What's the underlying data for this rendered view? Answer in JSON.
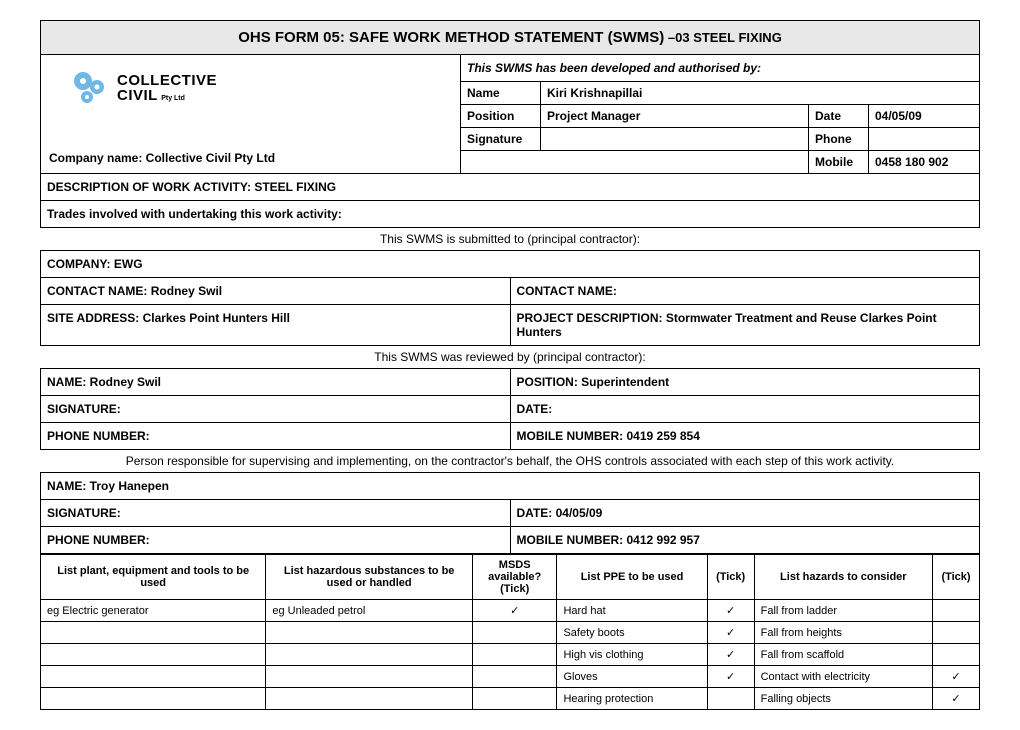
{
  "title_main": "OHS FORM 05: SAFE WORK METHOD STATEMENT (SWMS)",
  "title_suffix": " –03  STEEL FIXING",
  "company_name_label": "Company name: Collective Civil Pty Ltd",
  "logo": {
    "line1": "COLLECTIVE",
    "line2": "CIVIL",
    "sub": "Pty Ltd"
  },
  "auth": {
    "header": "This SWMS has been developed and authorised by:",
    "name_label": "Name",
    "name_value": "Kiri Krishnapillai",
    "position_label": "Position",
    "position_value": "Project Manager",
    "date_label": "Date",
    "date_value": "04/05/09",
    "signature_label": "Signature",
    "signature_value": "",
    "phone_label": "Phone",
    "phone_value": "",
    "mobile_label": "Mobile",
    "mobile_value": "0458 180 902"
  },
  "desc_activity": "DESCRIPTION OF WORK ACTIVITY:  STEEL FIXING",
  "trades_involved": "Trades involved with undertaking this work activity:",
  "submitted_to": "This SWMS is submitted to (principal contractor):",
  "company_row": "COMPANY: EWG",
  "contact_left": "CONTACT NAME: Rodney Swil",
  "contact_right": "CONTACT NAME:",
  "site_address": "SITE ADDRESS: Clarkes Point Hunters Hill",
  "project_desc": "PROJECT DESCRIPTION: Stormwater Treatment and Reuse Clarkes Point Hunters",
  "reviewed_by": "This SWMS was reviewed by (principal contractor):",
  "rev_name": "NAME: Rodney Swil",
  "rev_position": "POSITION: Superintendent",
  "rev_signature": "SIGNATURE:",
  "rev_date": "DATE:",
  "rev_phone": "PHONE NUMBER:",
  "rev_mobile": "MOBILE NUMBER: 0419 259 854",
  "person_resp": "Person responsible for supervising and implementing, on the contractor's behalf, the OHS controls associated with each step of this work activity.",
  "sup_name": "NAME:  Troy Hanepen",
  "sup_signature": "SIGNATURE:",
  "sup_date": "DATE: 04/05/09",
  "sup_phone": "PHONE NUMBER:",
  "sup_mobile": "MOBILE NUMBER: 0412 992 957",
  "hazards": {
    "headers": {
      "plant": "List plant, equipment and tools to be used",
      "substances": "List hazardous substances to be used or handled",
      "msds": "MSDS available? (Tick)",
      "ppe": "List PPE to be used",
      "tick1": "(Tick)",
      "consider": "List hazards to consider",
      "tick2": "(Tick)"
    },
    "rows": [
      {
        "plant": "eg Electric generator",
        "sub": "eg Unleaded petrol",
        "msds": "✓",
        "ppe": "Hard hat",
        "t1": "✓",
        "haz": "Fall from ladder",
        "t2": ""
      },
      {
        "plant": "",
        "sub": "",
        "msds": "",
        "ppe": "Safety boots",
        "t1": "✓",
        "haz": "Fall from heights",
        "t2": ""
      },
      {
        "plant": "",
        "sub": "",
        "msds": "",
        "ppe": "High vis clothing",
        "t1": "✓",
        "haz": "Fall from scaffold",
        "t2": ""
      },
      {
        "plant": "",
        "sub": "",
        "msds": "",
        "ppe": "Gloves",
        "t1": "✓",
        "haz": "Contact with electricity",
        "t2": "✓"
      },
      {
        "plant": "",
        "sub": "",
        "msds": "",
        "ppe": "Hearing protection",
        "t1": "",
        "haz": "Falling objects",
        "t2": "✓"
      }
    ]
  },
  "tick_char": "✓"
}
